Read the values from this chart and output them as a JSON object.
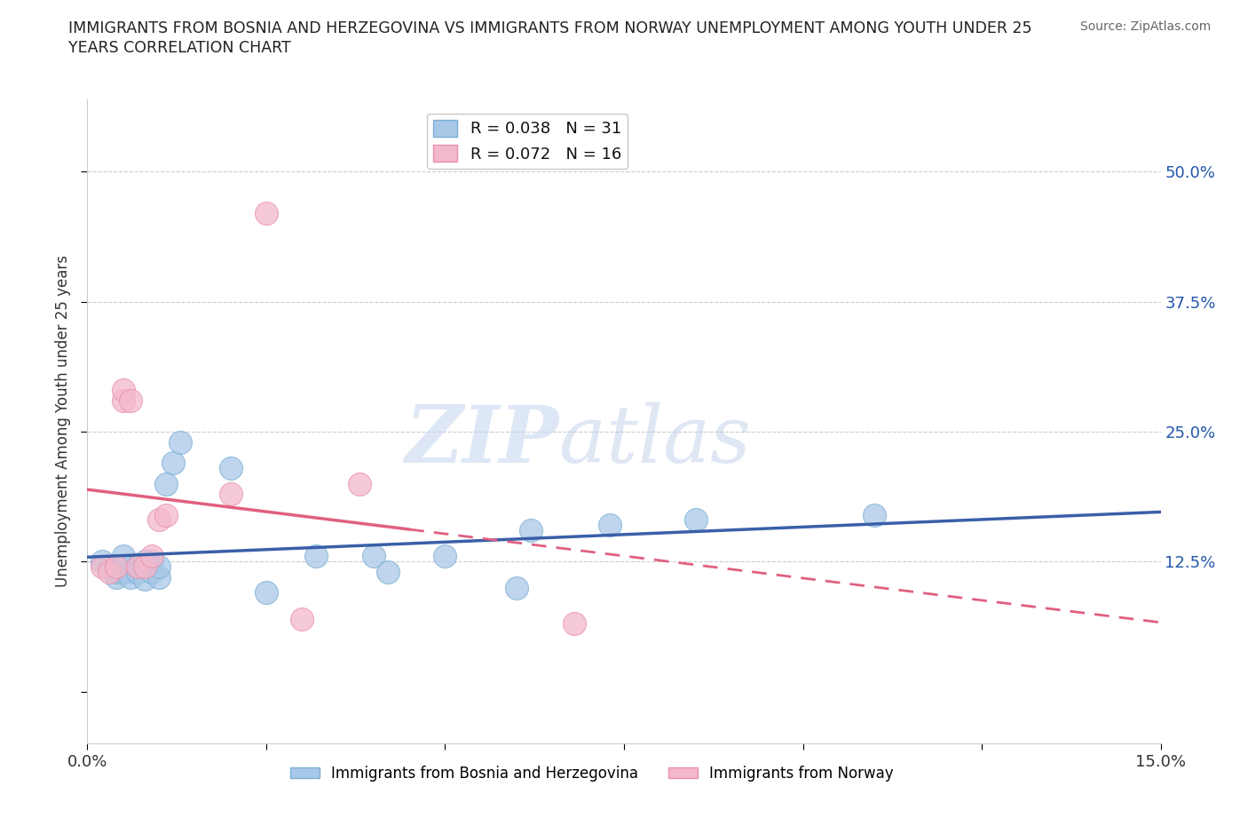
{
  "title_line1": "IMMIGRANTS FROM BOSNIA AND HERZEGOVINA VS IMMIGRANTS FROM NORWAY UNEMPLOYMENT AMONG YOUTH UNDER 25",
  "title_line2": "YEARS CORRELATION CHART",
  "source": "Source: ZipAtlas.com",
  "ylabel": "Unemployment Among Youth under 25 years",
  "xlim": [
    0.0,
    0.15
  ],
  "ylim": [
    -0.05,
    0.57
  ],
  "yticks": [
    0.0,
    0.125,
    0.25,
    0.375,
    0.5
  ],
  "ytick_labels_right": [
    "",
    "12.5%",
    "25.0%",
    "37.5%",
    "50.0%"
  ],
  "xticks": [
    0.0,
    0.025,
    0.05,
    0.075,
    0.1,
    0.125,
    0.15
  ],
  "xtick_labels": [
    "0.0%",
    "",
    "",
    "",
    "",
    "",
    "15.0%"
  ],
  "bosnia_R": 0.038,
  "bosnia_N": 31,
  "norway_R": 0.072,
  "norway_N": 16,
  "bosnia_color": "#a8c8e8",
  "norway_color": "#f4b8cc",
  "bosnia_edge_color": "#7bafd4",
  "norway_edge_color": "#e890aa",
  "bosnia_line_color": "#3a5fa8",
  "norway_line_color": "#e06080",
  "watermark_zip": "ZIP",
  "watermark_atlas": "atlas",
  "background_color": "#ffffff",
  "bosnia_x": [
    0.002,
    0.003,
    0.004,
    0.004,
    0.005,
    0.005,
    0.005,
    0.006,
    0.006,
    0.007,
    0.007,
    0.008,
    0.008,
    0.009,
    0.009,
    0.01,
    0.01,
    0.011,
    0.012,
    0.013,
    0.02,
    0.025,
    0.032,
    0.04,
    0.042,
    0.05,
    0.06,
    0.062,
    0.073,
    0.085,
    0.11
  ],
  "bosnia_y": [
    0.125,
    0.12,
    0.11,
    0.115,
    0.13,
    0.115,
    0.12,
    0.115,
    0.11,
    0.12,
    0.115,
    0.125,
    0.108,
    0.115,
    0.125,
    0.11,
    0.12,
    0.2,
    0.22,
    0.24,
    0.215,
    0.095,
    0.13,
    0.13,
    0.115,
    0.13,
    0.1,
    0.155,
    0.16,
    0.165,
    0.17
  ],
  "norway_x": [
    0.002,
    0.003,
    0.004,
    0.005,
    0.005,
    0.006,
    0.007,
    0.008,
    0.009,
    0.01,
    0.011,
    0.02,
    0.025,
    0.03,
    0.038,
    0.068
  ],
  "norway_y": [
    0.12,
    0.115,
    0.12,
    0.28,
    0.29,
    0.28,
    0.12,
    0.12,
    0.13,
    0.165,
    0.17,
    0.19,
    0.46,
    0.07,
    0.2,
    0.065
  ],
  "norway_solid_xlim": [
    0.0,
    0.045
  ],
  "norway_dashed_xlim": [
    0.045,
    0.15
  ]
}
